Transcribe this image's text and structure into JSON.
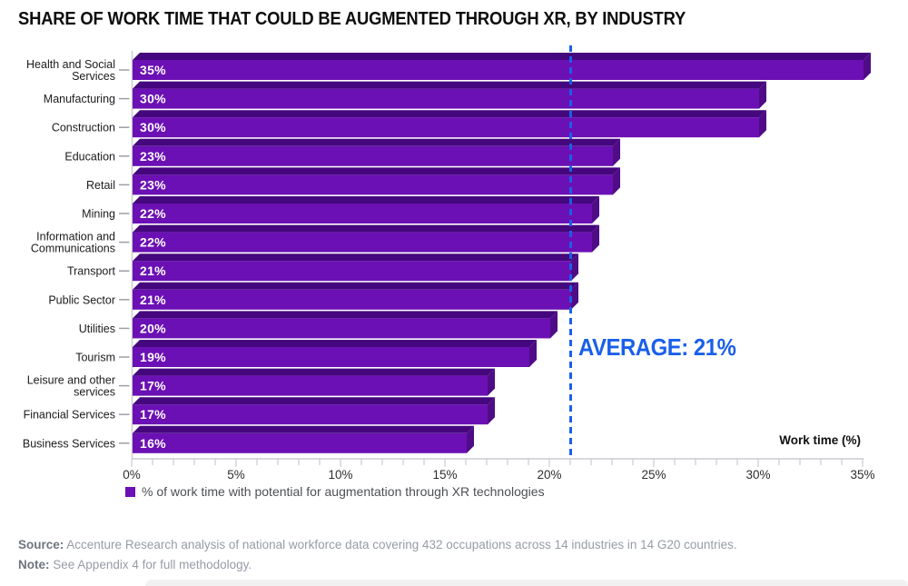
{
  "chart_data": {
    "type": "bar",
    "orientation": "horizontal",
    "title": "SHARE OF WORK TIME THAT COULD BE AUGMENTED THROUGH XR, BY INDUSTRY",
    "categories": [
      "Health and Social Services",
      "Manufacturing",
      "Construction",
      "Education",
      "Retail",
      "Mining",
      "Information and Communications",
      "Transport",
      "Public Sector",
      "Utilities",
      "Tourism",
      "Leisure and other services",
      "Financial Services",
      "Business Services"
    ],
    "category_label_lines": [
      [
        "Health and Social",
        "Services"
      ],
      [
        "Manufacturing"
      ],
      [
        "Construction"
      ],
      [
        "Education"
      ],
      [
        "Retail"
      ],
      [
        "Mining"
      ],
      [
        "Information and",
        "Communications"
      ],
      [
        "Transport"
      ],
      [
        "Public Sector"
      ],
      [
        "Utilities"
      ],
      [
        "Tourism"
      ],
      [
        "Leisure and other",
        "services"
      ],
      [
        "Financial Services"
      ],
      [
        "Business Services"
      ]
    ],
    "values": [
      35,
      30,
      30,
      23,
      23,
      22,
      22,
      21,
      21,
      20,
      19,
      17,
      17,
      16
    ],
    "value_labels": [
      "35%",
      "30%",
      "30%",
      "23%",
      "23%",
      "22%",
      "22%",
      "21%",
      "21%",
      "20%",
      "19%",
      "17%",
      "17%",
      "16%"
    ],
    "xlabel": "Work time (%)",
    "xlim": [
      0,
      35
    ],
    "x_tick_step_major": 5,
    "x_tick_step_minor": 1,
    "x_tick_labels": [
      "0%",
      "5%",
      "10%",
      "15%",
      "20%",
      "25%",
      "30%",
      "35%"
    ],
    "average_line": {
      "value": 21,
      "label": "AVERAGE: 21%"
    },
    "legend": [
      {
        "label": "% of work time with potential for augmentation through XR technologies",
        "color": "#6B10B4"
      }
    ],
    "colors": {
      "bar_front": "#6B10B4",
      "bar_top": "#45077D",
      "bar_side": "#4F0C86",
      "average_blue": "#1A5FEA",
      "axis": "#C9CCD1",
      "label_tick": "#9AA0A6"
    }
  },
  "footer": {
    "source_label": "Source:",
    "source_text": "Accenture Research analysis of national workforce data covering 432 occupations across 14 industries in 14 G20 countries.",
    "note_label": "Note:",
    "note_text": "See Appendix 4 for full methodology."
  }
}
